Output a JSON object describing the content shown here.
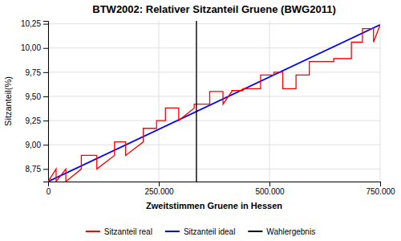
{
  "chart_data": {
    "type": "line",
    "title": "BTW2002: Relativer Sitzanteil Gruene (BWG2011)",
    "xlabel": "Zweitstimmen Gruene in Hessen",
    "ylabel": "Sitzanteil(%)",
    "xlim": [
      0,
      750000
    ],
    "ylim": [
      8.62,
      10.28
    ],
    "xticks": [
      0,
      {
        "value": 250000,
        "label": "250.000"
      },
      {
        "value": 500000,
        "label": "500.000"
      },
      {
        "value": 750000,
        "label": "750.000"
      }
    ],
    "yticks": [
      {
        "value": 8.75,
        "label": "8,75"
      },
      {
        "value": 9.0,
        "label": "9,00"
      },
      {
        "value": 9.25,
        "label": "9,25"
      },
      {
        "value": 9.5,
        "label": "9,50"
      },
      {
        "value": 9.75,
        "label": "9,75"
      },
      {
        "value": 10.0,
        "label": "10,00"
      },
      {
        "value": 10.25,
        "label": "10,25"
      }
    ],
    "grid": true,
    "legend": "bottom",
    "series": [
      {
        "name": "Sitzanteil real",
        "color": "red",
        "x": [
          0,
          18000,
          18001,
          40000,
          40001,
          75000,
          75001,
          110000,
          110001,
          150000,
          150001,
          175000,
          175001,
          215000,
          215001,
          245000,
          245001,
          265000,
          265001,
          295000,
          295001,
          330000,
          330001,
          365000,
          365001,
          395000,
          395001,
          415000,
          415001,
          440000,
          440001,
          480000,
          480001,
          510000,
          510001,
          530000,
          530001,
          560000,
          560001,
          590000,
          590001,
          645000,
          645001,
          685000,
          685001,
          710000,
          710001,
          735000,
          735001,
          750000
        ],
        "values": [
          8.62,
          8.75,
          8.62,
          8.75,
          8.62,
          8.75,
          8.89,
          8.89,
          8.75,
          8.89,
          9.03,
          9.03,
          8.89,
          9.03,
          9.17,
          9.17,
          9.25,
          9.25,
          9.38,
          9.38,
          9.25,
          9.38,
          9.42,
          9.42,
          9.55,
          9.55,
          9.42,
          9.55,
          9.56,
          9.56,
          9.58,
          9.58,
          9.72,
          9.72,
          9.75,
          9.75,
          9.58,
          9.58,
          9.72,
          9.72,
          9.86,
          9.86,
          9.89,
          9.89,
          10.06,
          10.06,
          10.2,
          10.2,
          10.06,
          10.24
        ]
      },
      {
        "name": "Sitzanteil ideal",
        "color": "blue",
        "x": [
          0,
          750000
        ],
        "values": [
          8.62,
          10.24
        ]
      },
      {
        "name": "Wahlergebnis",
        "type": "vline",
        "color": "black",
        "x": 335000
      }
    ]
  }
}
